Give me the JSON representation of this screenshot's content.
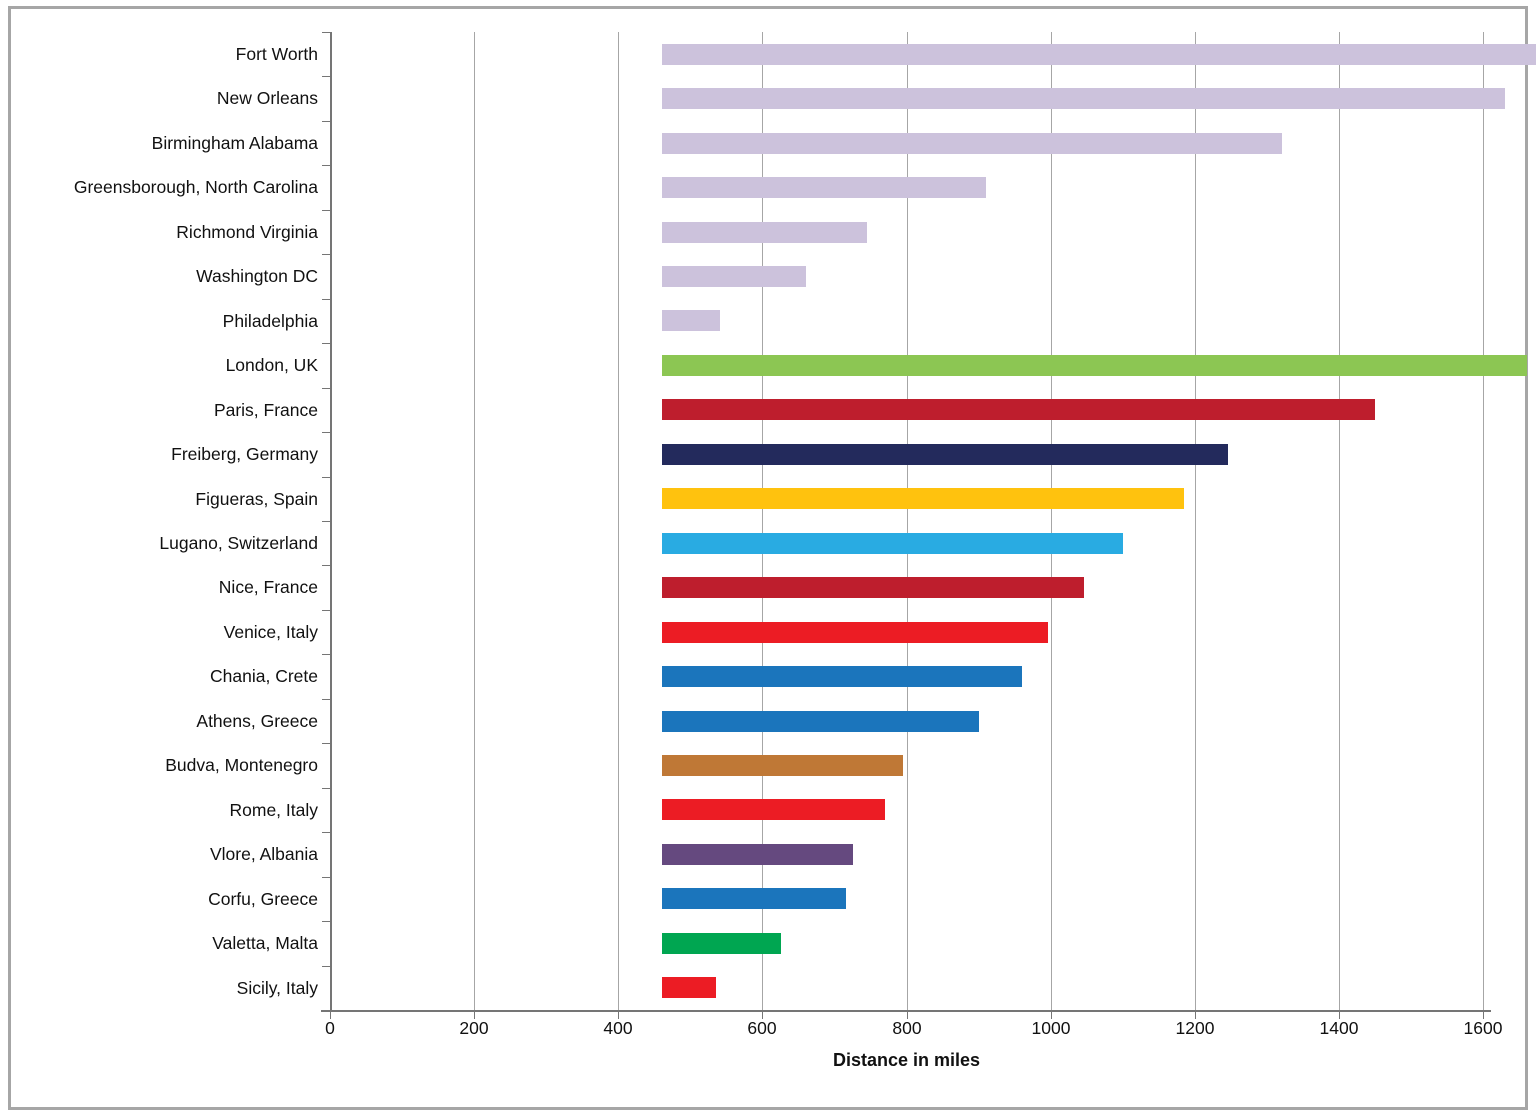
{
  "figure": {
    "background_color": "#FFFFFF",
    "frame_border_color": "#A6A6A6",
    "axis_line_color": "#757575",
    "gridline_color": "#A6A6A6",
    "text_color": "#111111"
  },
  "chart_data": {
    "type": "bar",
    "orientation": "horizontal",
    "title": "",
    "xlabel": "Distance in miles",
    "ylabel": "",
    "xlim": [
      0,
      1600
    ],
    "xticks": [
      0,
      200,
      400,
      600,
      800,
      1000,
      1200,
      1400,
      1600
    ],
    "grid": "vertical-only",
    "legend": "none",
    "categories": [
      "Fort Worth",
      "New Orleans",
      "Birmingham Alabama",
      "Greensborough, North Carolina",
      "Richmond Virginia",
      "Washington DC",
      "Philadelphia",
      "London, UK",
      "Paris, France",
      "Freiberg, Germany",
      "Figueras, Spain",
      "Lugano, Switzerland",
      "Nice, France",
      "Venice, Italy",
      "Chania, Crete",
      "Athens, Greece",
      "Budva, Montenegro",
      "Rome, Italy",
      "Vlore, Albania",
      "Corfu, Greece",
      "Valetta, Malta",
      "Sicily, Italy"
    ],
    "values": [
      1400,
      1170,
      860,
      450,
      285,
      200,
      80,
      1200,
      990,
      785,
      725,
      640,
      585,
      535,
      500,
      440,
      335,
      310,
      265,
      255,
      165,
      75
    ],
    "bar_colors": [
      "#CCC2DC",
      "#CCC2DC",
      "#CCC2DC",
      "#CCC2DC",
      "#CCC2DC",
      "#CCC2DC",
      "#CCC2DC",
      "#8CC653",
      "#BE1E2D",
      "#232A5C",
      "#FFC20E",
      "#29ABE2",
      "#BE1E2D",
      "#EC1C24",
      "#1B75BC",
      "#1B75BC",
      "#BF7836",
      "#EC1C24",
      "#65497F",
      "#1B75BC",
      "#00A651",
      "#EC1C24"
    ]
  }
}
